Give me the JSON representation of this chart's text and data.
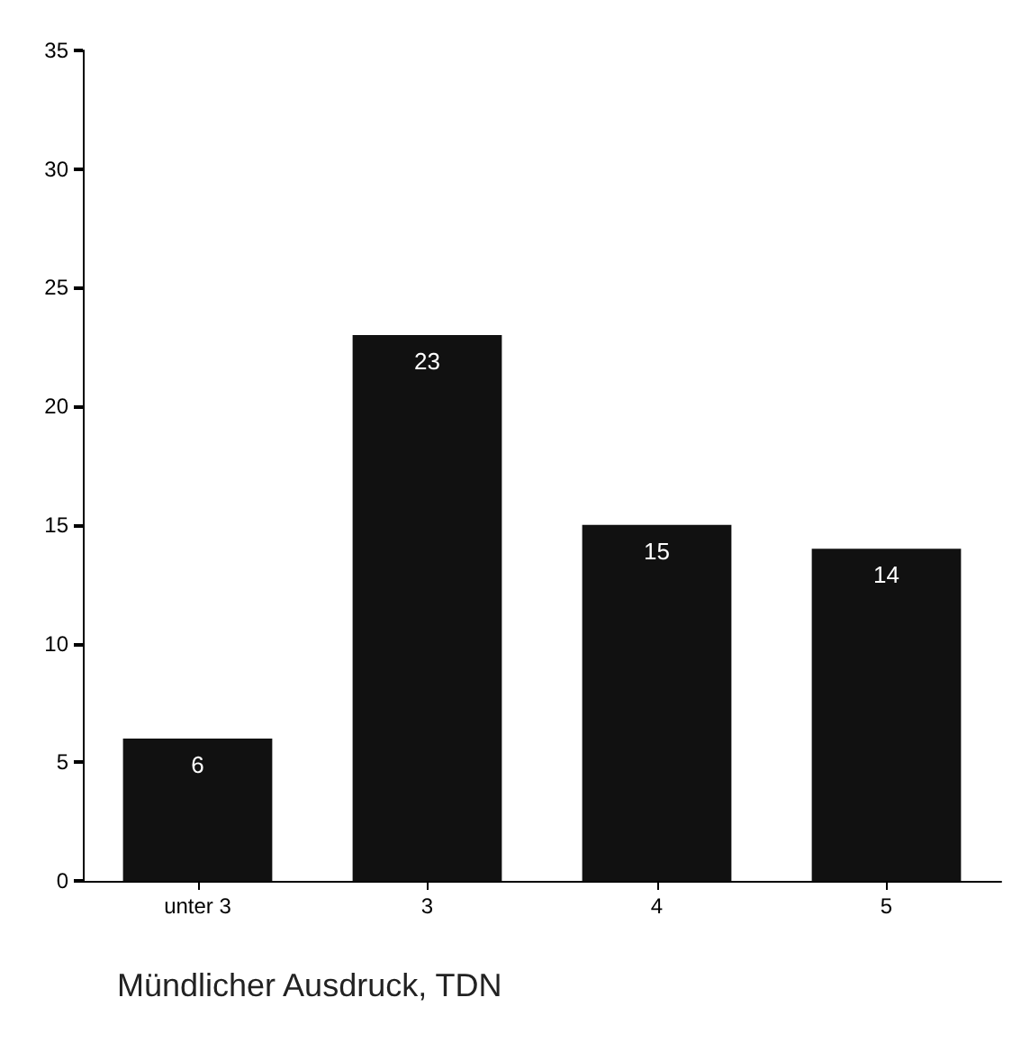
{
  "chart_data": {
    "type": "bar",
    "xlabel": "Mündlicher Ausdruck, TDN",
    "categories": [
      "unter 3",
      "3",
      "4",
      "5"
    ],
    "values": [
      6,
      23,
      15,
      14
    ],
    "color": "#111111",
    "data_labels": true,
    "ylim": [
      0,
      35
    ],
    "yticks": [
      0,
      5,
      10,
      15,
      20,
      25,
      30,
      35
    ],
    "grid": false
  }
}
